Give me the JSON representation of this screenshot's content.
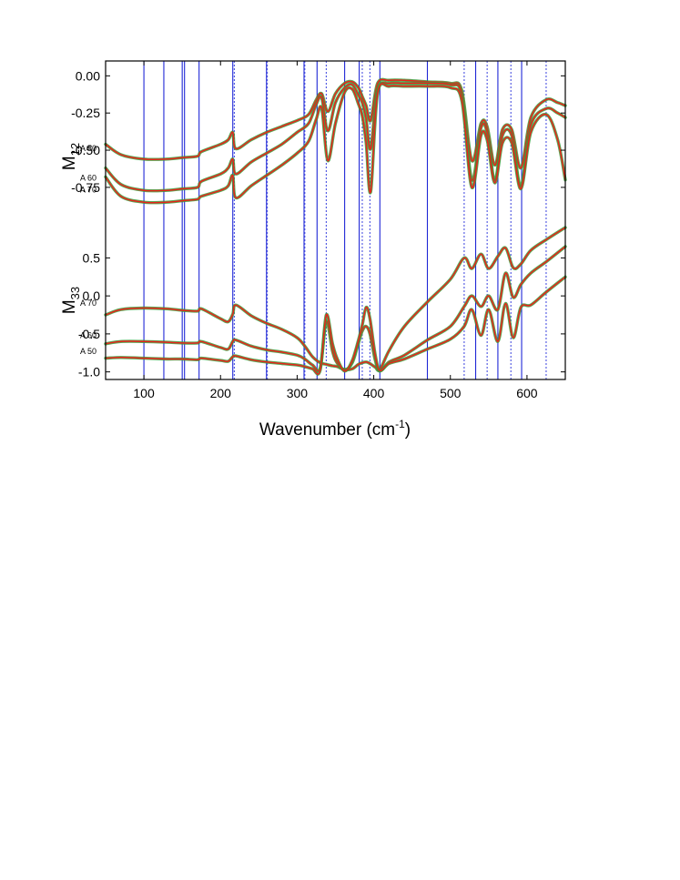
{
  "chart_data": {
    "type": "line",
    "xlabel": {
      "main": "Wavenumber (cm",
      "sup": "-1",
      "close": ")"
    },
    "xlim": [
      50,
      650
    ],
    "xticks": [
      100,
      200,
      300,
      400,
      500,
      600
    ],
    "xtick_labels": [
      "100",
      "200",
      "300",
      "400",
      "500",
      "600"
    ],
    "colors": {
      "measured": "#3a9a3a",
      "fit": "#e8231b",
      "solid_line": "#1f27d6",
      "dotted_line": "#4a52e0"
    },
    "vertical_lines": {
      "solid": [
        100,
        126,
        150,
        153,
        172,
        216,
        260,
        309,
        326,
        362,
        381,
        408,
        470,
        533,
        562,
        593
      ],
      "dotted": [
        218,
        261,
        310,
        338,
        385,
        395,
        518,
        548,
        579,
        625
      ]
    },
    "panels": [
      {
        "id": "M12",
        "ylabel": {
          "main": "M",
          "sub": "12"
        },
        "ylim": [
          -1.02,
          0.1
        ],
        "yticks": [
          0.0,
          -0.25,
          -0.5,
          -0.75
        ],
        "ytick_labels": [
          "0.00",
          "-0.25",
          "-0.50",
          "-0.75"
        ],
        "series": [
          {
            "name": "A 50",
            "x": [
              50,
              70,
              100,
              130,
              150,
              170,
              175,
              200,
              210,
              216,
              220,
              240,
              260,
              280,
              300,
              315,
              325,
              332,
              340,
              350,
              362,
              372,
              380,
              385,
              390,
              396,
              405,
              420,
              440,
              470,
              500,
              515,
              528,
              540,
              548,
              558,
              568,
              580,
              592,
              605,
              625,
              640,
              650
            ],
            "y": [
              -0.46,
              -0.53,
              -0.56,
              -0.56,
              -0.55,
              -0.54,
              -0.51,
              -0.46,
              -0.43,
              -0.38,
              -0.49,
              -0.43,
              -0.38,
              -0.34,
              -0.3,
              -0.26,
              -0.16,
              -0.12,
              -0.24,
              -0.12,
              -0.05,
              -0.04,
              -0.08,
              -0.14,
              -0.2,
              -0.3,
              -0.05,
              -0.03,
              -0.03,
              -0.04,
              -0.05,
              -0.1,
              -0.57,
              -0.32,
              -0.34,
              -0.6,
              -0.36,
              -0.36,
              -0.62,
              -0.28,
              -0.16,
              -0.18,
              -0.2
            ]
          },
          {
            "name": "A 60",
            "x": [
              50,
              70,
              100,
              130,
              150,
              170,
              175,
              200,
              210,
              216,
              220,
              240,
              260,
              280,
              300,
              315,
              325,
              332,
              340,
              350,
              362,
              372,
              380,
              385,
              390,
              396,
              405,
              420,
              440,
              470,
              500,
              515,
              528,
              540,
              548,
              558,
              568,
              580,
              592,
              605,
              625,
              640,
              650
            ],
            "y": [
              -0.62,
              -0.73,
              -0.77,
              -0.77,
              -0.76,
              -0.75,
              -0.71,
              -0.66,
              -0.62,
              -0.56,
              -0.66,
              -0.58,
              -0.52,
              -0.46,
              -0.38,
              -0.32,
              -0.19,
              -0.15,
              -0.37,
              -0.18,
              -0.08,
              -0.06,
              -0.13,
              -0.18,
              -0.29,
              -0.49,
              -0.09,
              -0.05,
              -0.05,
              -0.05,
              -0.06,
              -0.13,
              -0.7,
              -0.35,
              -0.38,
              -0.7,
              -0.4,
              -0.4,
              -0.74,
              -0.33,
              -0.22,
              -0.25,
              -0.28
            ]
          },
          {
            "name": "A 70",
            "x": [
              50,
              70,
              100,
              130,
              150,
              170,
              175,
              200,
              210,
              216,
              220,
              240,
              260,
              280,
              300,
              315,
              325,
              332,
              340,
              350,
              362,
              372,
              380,
              385,
              390,
              396,
              405,
              420,
              440,
              470,
              500,
              515,
              528,
              540,
              548,
              558,
              568,
              580,
              592,
              605,
              625,
              640,
              650
            ],
            "y": [
              -0.68,
              -0.81,
              -0.85,
              -0.85,
              -0.84,
              -0.83,
              -0.81,
              -0.77,
              -0.74,
              -0.67,
              -0.82,
              -0.74,
              -0.67,
              -0.6,
              -0.52,
              -0.44,
              -0.29,
              -0.22,
              -0.57,
              -0.32,
              -0.11,
              -0.09,
              -0.19,
              -0.27,
              -0.45,
              -0.78,
              -0.12,
              -0.07,
              -0.07,
              -0.07,
              -0.08,
              -0.17,
              -0.75,
              -0.4,
              -0.43,
              -0.72,
              -0.45,
              -0.45,
              -0.76,
              -0.38,
              -0.26,
              -0.43,
              -0.7
            ]
          }
        ]
      },
      {
        "id": "M33",
        "ylabel": {
          "main": "M",
          "sub": "33"
        },
        "ylim": [
          -1.1,
          0.9
        ],
        "yticks": [
          0.5,
          0.0,
          -0.5,
          -1.0
        ],
        "ytick_labels": [
          "0.5",
          "0.0",
          "-0.5",
          "-1.0"
        ],
        "series": [
          {
            "name": "A 70",
            "x": [
              50,
              70,
              100,
              130,
              150,
              170,
              175,
              200,
              210,
              216,
              220,
              240,
              260,
              280,
              300,
              310,
              320,
              330,
              338,
              346,
              352,
              362,
              372,
              380,
              385,
              390,
              395,
              402,
              408,
              420,
              440,
              470,
              500,
              518,
              528,
              540,
              550,
              562,
              572,
              582,
              592,
              605,
              625,
              650
            ],
            "y": [
              -0.25,
              -0.18,
              -0.16,
              -0.17,
              -0.19,
              -0.2,
              -0.17,
              -0.3,
              -0.34,
              -0.24,
              -0.12,
              -0.26,
              -0.36,
              -0.44,
              -0.55,
              -0.66,
              -0.8,
              -0.88,
              -0.9,
              -0.92,
              -0.93,
              -0.97,
              -0.96,
              -0.9,
              -0.88,
              -0.87,
              -0.89,
              -0.94,
              -0.97,
              -0.72,
              -0.4,
              -0.08,
              0.22,
              0.5,
              0.36,
              0.55,
              0.36,
              0.52,
              0.63,
              0.37,
              0.42,
              0.6,
              0.74,
              0.9
            ]
          },
          {
            "name": "A 60",
            "x": [
              50,
              70,
              100,
              130,
              150,
              170,
              175,
              200,
              210,
              216,
              220,
              240,
              260,
              280,
              300,
              310,
              320,
              330,
              338,
              346,
              352,
              362,
              372,
              380,
              385,
              390,
              395,
              402,
              408,
              420,
              440,
              470,
              500,
              518,
              528,
              540,
              550,
              562,
              572,
              582,
              592,
              605,
              625,
              650
            ],
            "y": [
              -0.63,
              -0.6,
              -0.6,
              -0.61,
              -0.62,
              -0.62,
              -0.6,
              -0.68,
              -0.7,
              -0.6,
              -0.58,
              -0.66,
              -0.71,
              -0.74,
              -0.78,
              -0.83,
              -0.91,
              -0.95,
              -0.34,
              -0.72,
              -0.88,
              -0.97,
              -0.88,
              -0.62,
              -0.46,
              -0.4,
              -0.5,
              -0.85,
              -0.99,
              -0.87,
              -0.78,
              -0.58,
              -0.4,
              -0.14,
              0.0,
              -0.14,
              0.0,
              -0.18,
              0.3,
              -0.02,
              0.15,
              0.3,
              0.45,
              0.65
            ]
          },
          {
            "name": "A 50",
            "x": [
              50,
              70,
              100,
              130,
              150,
              170,
              175,
              200,
              210,
              216,
              220,
              240,
              260,
              280,
              300,
              310,
              320,
              330,
              338,
              346,
              352,
              362,
              372,
              380,
              385,
              390,
              395,
              402,
              408,
              420,
              440,
              470,
              500,
              518,
              528,
              540,
              550,
              562,
              572,
              582,
              592,
              605,
              625,
              650
            ],
            "y": [
              -0.82,
              -0.81,
              -0.82,
              -0.83,
              -0.83,
              -0.84,
              -0.82,
              -0.85,
              -0.86,
              -0.8,
              -0.79,
              -0.84,
              -0.87,
              -0.89,
              -0.91,
              -0.93,
              -0.96,
              -0.98,
              -0.25,
              -0.62,
              -0.82,
              -0.99,
              -0.85,
              -0.58,
              -0.38,
              -0.15,
              -0.3,
              -0.78,
              -0.98,
              -0.89,
              -0.83,
              -0.7,
              -0.57,
              -0.4,
              -0.18,
              -0.52,
              -0.18,
              -0.6,
              -0.1,
              -0.55,
              -0.15,
              -0.12,
              0.05,
              0.25
            ]
          }
        ]
      }
    ]
  }
}
